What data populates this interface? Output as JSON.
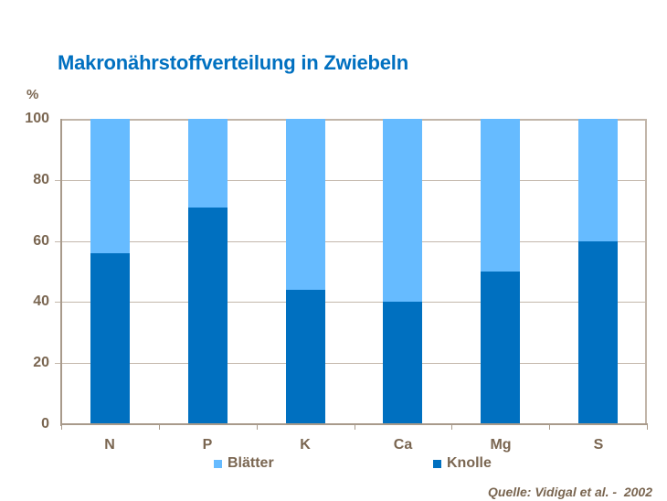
{
  "chart_data": {
    "type": "bar",
    "stacked": true,
    "title": "Makronährstoffverteilung in Zwiebeln",
    "xlabel": "",
    "ylabel": "%",
    "ylim": [
      0,
      100
    ],
    "yticks": [
      0,
      20,
      40,
      60,
      80,
      100
    ],
    "grid": true,
    "legend_position": "bottom",
    "categories": [
      "N",
      "P",
      "K",
      "Ca",
      "Mg",
      "S"
    ],
    "series": [
      {
        "name": "Knolle",
        "color": "#0070C0",
        "values": [
          56,
          71,
          44,
          40,
          50,
          60
        ]
      },
      {
        "name": "Blätter",
        "color": "#66BBFF",
        "values": [
          44,
          29,
          56,
          60,
          50,
          40
        ]
      }
    ],
    "annotations": [
      "Quelle: Vidigal et al. -  2002"
    ]
  },
  "title": "Makronährstoffverteilung in Zwiebeln",
  "y_axis": {
    "unit": "%",
    "ticks": [
      "100",
      "80",
      "60",
      "40",
      "20",
      "0"
    ]
  },
  "x_axis": {
    "labels": [
      "N",
      "P",
      "K",
      "Ca",
      "Mg",
      "S"
    ]
  },
  "legend": {
    "items": [
      {
        "label": "Blätter",
        "color": "#66BBFF"
      },
      {
        "label": "Knolle",
        "color": "#0070C0"
      }
    ]
  },
  "source": "Quelle: Vidigal et al. -  2002"
}
